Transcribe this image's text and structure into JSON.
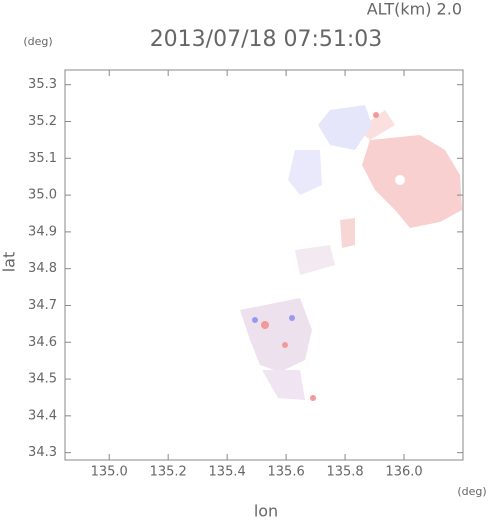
{
  "chart_data": {
    "type": "map",
    "title": "2013/07/18 07:51:03",
    "annotation": "ALT(km) 2.0",
    "x_label": "lon",
    "y_label": "lat",
    "x_unit": "(deg)",
    "y_unit": "(deg)",
    "xlim": [
      134.85,
      136.2
    ],
    "ylim": [
      34.28,
      35.34
    ],
    "xticks": [
      {
        "value": 135,
        "label": "135.0"
      },
      135.2,
      135.4,
      135.6,
      135.8,
      {
        "value": 136,
        "label": "136.0"
      }
    ],
    "yticks": [
      34.3,
      34.4,
      34.5,
      34.6,
      34.7,
      34.8,
      34.9,
      {
        "value": 35,
        "label": "35.0"
      },
      35.1,
      35.2,
      35.3
    ]
  }
}
